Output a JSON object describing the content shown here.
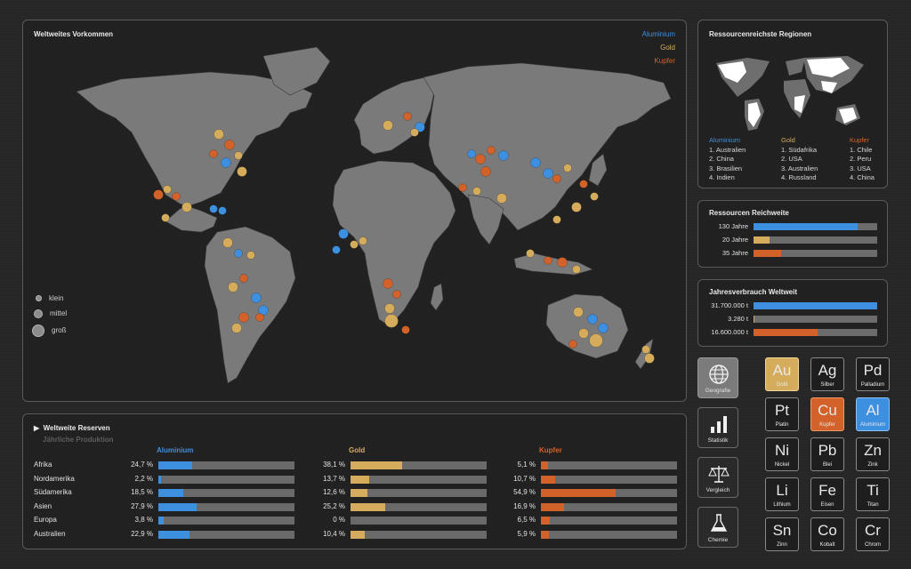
{
  "colors": {
    "aluminium": "#3d8fe0",
    "gold": "#d4ac5c",
    "kupfer": "#d2622a",
    "track": "#6a6a6a",
    "land": "#7a7a7a"
  },
  "map": {
    "title": "Weltweites Vorkommen",
    "legend": [
      {
        "label": "Aluminium",
        "color": "#3d8fe0"
      },
      {
        "label": "Gold",
        "color": "#d4ac5c"
      },
      {
        "label": "Kupfer",
        "color": "#d2622a"
      }
    ],
    "size_legend": [
      "klein",
      "mittel",
      "groß"
    ]
  },
  "regions": {
    "title": "Ressourcenreichste Regionen",
    "columns": [
      {
        "heading": "Aluminium",
        "color": "#3d8fe0",
        "items": [
          "1. Australien",
          "2. China",
          "3. Brasilien",
          "4. Indien"
        ]
      },
      {
        "heading": "Gold",
        "color": "#d4ac5c",
        "items": [
          "1. Südafrika",
          "2. USA",
          "3. Australien",
          "4. Russland"
        ]
      },
      {
        "heading": "Kupfer",
        "color": "#d2622a",
        "items": [
          "1. Chile",
          "2. Peru",
          "3. USA",
          "4. China"
        ]
      }
    ]
  },
  "range": {
    "title": "Ressourcen Reichweite",
    "rows": [
      {
        "label": "130 Jahre",
        "fraction": 0.84,
        "color": "#3d8fe0"
      },
      {
        "label": "20 Jahre",
        "fraction": 0.13,
        "color": "#d4ac5c"
      },
      {
        "label": "35 Jahre",
        "fraction": 0.22,
        "color": "#d2622a"
      }
    ]
  },
  "consumption": {
    "title": "Jahresverbrauch Weltweit",
    "rows": [
      {
        "label": "31.700.000 t",
        "fraction": 1.0,
        "color": "#3d8fe0"
      },
      {
        "label": "3.280 t",
        "fraction": 0.01,
        "color": "#d4ac5c"
      },
      {
        "label": "16.600.000 t",
        "fraction": 0.52,
        "color": "#d2622a"
      }
    ]
  },
  "reserves": {
    "title": "Weltweite Reserven",
    "subtitle": "Jährliche Produktion",
    "metals": [
      {
        "name": "Aluminium",
        "color": "#3d8fe0"
      },
      {
        "name": "Gold",
        "color": "#d4ac5c"
      },
      {
        "name": "Kupfer",
        "color": "#d2622a"
      }
    ],
    "rows": [
      {
        "region": "Afrika",
        "values": [
          {
            "text": "24,7 %",
            "value": 24.7
          },
          {
            "text": "38,1 %",
            "value": 38.1
          },
          {
            "text": "5,1 %",
            "value": 5.1
          }
        ]
      },
      {
        "region": "Nordamerika",
        "values": [
          {
            "text": "2,2 %",
            "value": 2.2
          },
          {
            "text": "13,7 %",
            "value": 13.7
          },
          {
            "text": "10,7 %",
            "value": 10.7
          }
        ]
      },
      {
        "region": "Südamerika",
        "values": [
          {
            "text": "18,5 %",
            "value": 18.5
          },
          {
            "text": "12,6 %",
            "value": 12.6
          },
          {
            "text": "54,9 %",
            "value": 54.9
          }
        ]
      },
      {
        "region": "Asien",
        "values": [
          {
            "text": "27,9 %",
            "value": 27.9
          },
          {
            "text": "25,2 %",
            "value": 25.2
          },
          {
            "text": "16,9 %",
            "value": 16.9
          }
        ]
      },
      {
        "region": "Europa",
        "values": [
          {
            "text": "3,8 %",
            "value": 3.8
          },
          {
            "text": "0 %",
            "value": 0
          },
          {
            "text": "6,5 %",
            "value": 6.5
          }
        ]
      },
      {
        "region": "Australien",
        "values": [
          {
            "text": "22,9 %",
            "value": 22.9
          },
          {
            "text": "10,4 %",
            "value": 10.4
          },
          {
            "text": "5,9 %",
            "value": 5.9
          }
        ]
      }
    ]
  },
  "nav": [
    {
      "label": "Geografie",
      "icon": "globe-icon",
      "active": true
    },
    {
      "label": "Statistik",
      "icon": "bar-chart-icon",
      "active": false
    },
    {
      "label": "Vergleich",
      "icon": "scale-icon",
      "active": false
    },
    {
      "label": "Chemie",
      "icon": "flask-icon",
      "active": false
    }
  ],
  "elements": [
    {
      "symbol": "Au",
      "name": "Gold",
      "selected": "gold"
    },
    {
      "symbol": "Ag",
      "name": "Silber",
      "selected": ""
    },
    {
      "symbol": "Pd",
      "name": "Palladium",
      "selected": ""
    },
    {
      "symbol": "Pt",
      "name": "Platin",
      "selected": ""
    },
    {
      "symbol": "Cu",
      "name": "Kupfer",
      "selected": "kupfer"
    },
    {
      "symbol": "Al",
      "name": "Aluminium",
      "selected": "aluminium"
    },
    {
      "symbol": "Ni",
      "name": "Nickel",
      "selected": ""
    },
    {
      "symbol": "Pb",
      "name": "Blei",
      "selected": ""
    },
    {
      "symbol": "Zn",
      "name": "Zink",
      "selected": ""
    },
    {
      "symbol": "Li",
      "name": "Lithium",
      "selected": ""
    },
    {
      "symbol": "Fe",
      "name": "Eisen",
      "selected": ""
    },
    {
      "symbol": "Ti",
      "name": "Titan",
      "selected": ""
    },
    {
      "symbol": "Sn",
      "name": "Zinn",
      "selected": ""
    },
    {
      "symbol": "Co",
      "name": "Kobalt",
      "selected": ""
    },
    {
      "symbol": "Cr",
      "name": "Chrom",
      "selected": ""
    }
  ]
}
